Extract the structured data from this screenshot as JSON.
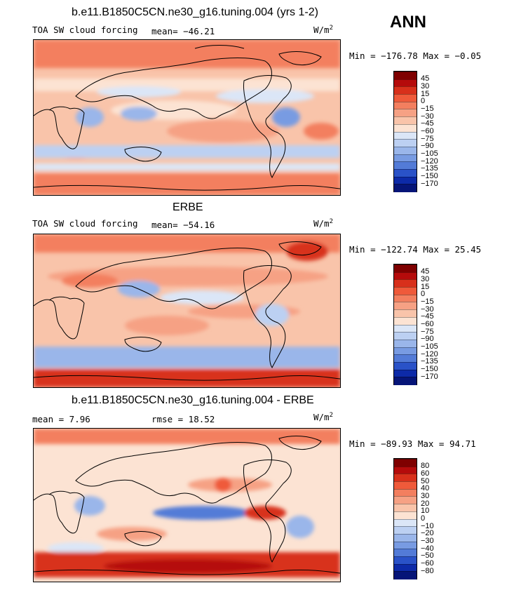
{
  "season_label": "ANN",
  "panels": [
    {
      "id": "model",
      "title": "b.e11.B1850C5CN.ne30_g16.tuning.004 (yrs 1-2)",
      "variable_label": "TOA SW cloud forcing",
      "stat_label": "mean= −46.21",
      "units_label": "W/m",
      "units_sup": "2",
      "minmax": "Min = −176.78 Max =  −0.05",
      "palette": "sw",
      "colorbar": {
        "levels": [
          "45",
          "30",
          "15",
          "0",
          "−15",
          "−30",
          "−45",
          "−60",
          "−75",
          "−90",
          "−105",
          "−120",
          "−135",
          "−150",
          "−170"
        ]
      }
    },
    {
      "id": "obs",
      "title": "ERBE",
      "variable_label": "TOA SW cloud forcing",
      "stat_label": "mean= −54.16",
      "units_label": "W/m",
      "units_sup": "2",
      "minmax": "Min = −122.74 Max =  25.45",
      "palette": "sw",
      "colorbar": {
        "levels": [
          "45",
          "30",
          "15",
          "0",
          "−15",
          "−30",
          "−45",
          "−60",
          "−75",
          "−90",
          "−105",
          "−120",
          "−135",
          "−150",
          "−170"
        ]
      }
    },
    {
      "id": "diff",
      "title": "b.e11.B1850C5CN.ne30_g16.tuning.004 - ERBE",
      "variable_label": "",
      "stat_label": "mean =    7.96",
      "stat2_label": "rmse =   18.52",
      "units_label": "W/m",
      "units_sup": "2",
      "minmax": "Min = −89.93 Max =  94.71",
      "palette": "diff",
      "colorbar": {
        "levels": [
          "80",
          "60",
          "50",
          "40",
          "30",
          "20",
          "10",
          "0",
          "−10",
          "−20",
          "−30",
          "−40",
          "−50",
          "−60",
          "−80"
        ]
      }
    }
  ],
  "colors": {
    "sw": [
      "#7f0000",
      "#b50b0b",
      "#d8301b",
      "#ef5a3a",
      "#f37f5f",
      "#f6a184",
      "#f9c4aa",
      "#fce3d3",
      "#dbe6f7",
      "#bcd0f2",
      "#9ab6ea",
      "#789be2",
      "#537bd7",
      "#2a52c8",
      "#0d2aa8",
      "#061578"
    ],
    "diff": [
      "#7f0000",
      "#b50b0b",
      "#d8301b",
      "#ef5a3a",
      "#f37f5f",
      "#f6a184",
      "#f9c4aa",
      "#fce3d3",
      "#dbe6f7",
      "#bcd0f2",
      "#9ab6ea",
      "#789be2",
      "#537bd7",
      "#2a52c8",
      "#0d2aa8",
      "#061578"
    ]
  }
}
